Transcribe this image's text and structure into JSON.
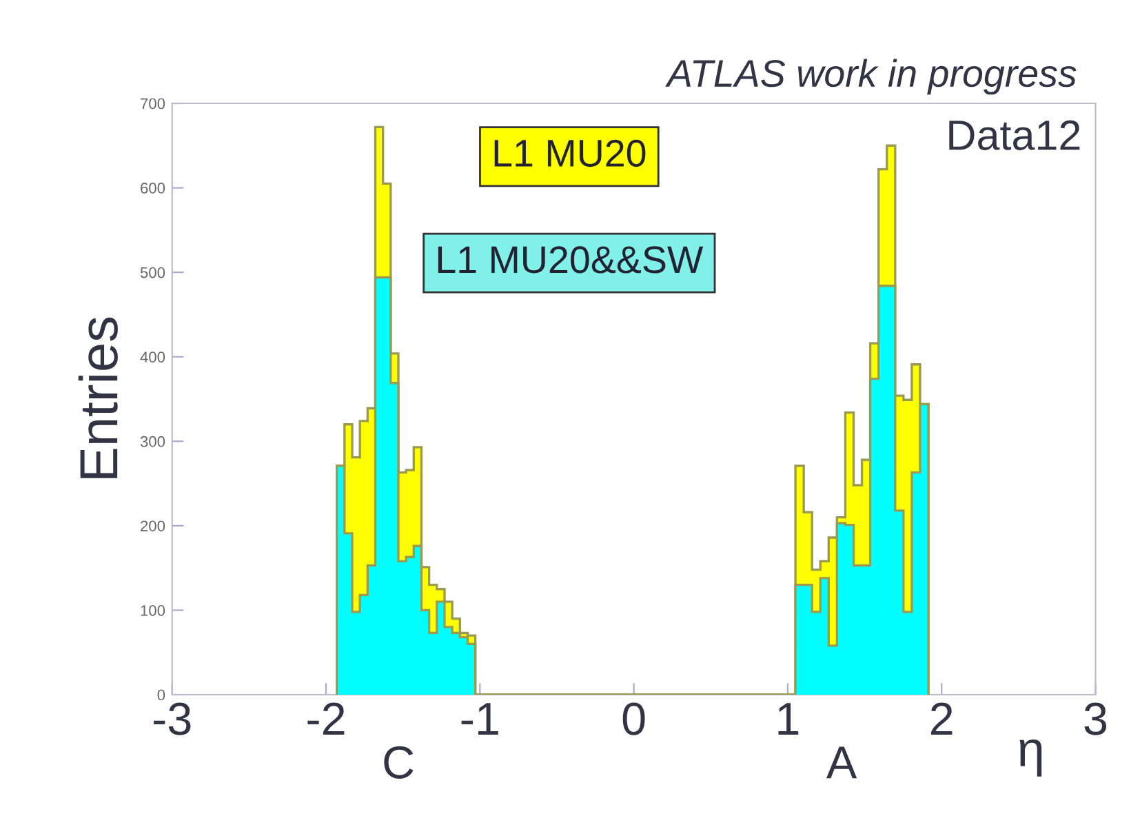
{
  "chart_data": {
    "type": "histogram",
    "ylabel": "Entries",
    "xlabel": "η",
    "bins": [
      -1.93,
      -1.88,
      -1.83,
      -1.78,
      -1.73,
      -1.68,
      -1.63,
      -1.58,
      -1.53,
      -1.48,
      -1.43,
      -1.38,
      -1.33,
      -1.28,
      -1.23,
      -1.18,
      -1.13,
      -1.08,
      -1.03,
      1.05,
      1.104,
      1.158,
      1.212,
      1.266,
      1.32,
      1.374,
      1.428,
      1.482,
      1.536,
      1.59,
      1.644,
      1.698,
      1.752,
      1.806,
      1.86,
      1.914
    ],
    "series": [
      {
        "name": "L1 MU20",
        "color": "#ffff00",
        "values": [
          271,
          320,
          281,
          324,
          339,
          672,
          605,
          404,
          263,
          266,
          293,
          151,
          130,
          125,
          110,
          90,
          73,
          70,
          0,
          271,
          216,
          148,
          158,
          186,
          210,
          334,
          248,
          278,
          416,
          622,
          650,
          354,
          349,
          391,
          344
        ]
      },
      {
        "name": "L1 MU20&&SW",
        "color": "#00ffff",
        "values": [
          271,
          191,
          98,
          118,
          153,
          494,
          494,
          369,
          158,
          163,
          176,
          100,
          73,
          110,
          80,
          73,
          68,
          60,
          0,
          130,
          130,
          98,
          138,
          58,
          203,
          201,
          153,
          153,
          374,
          484,
          484,
          218,
          98,
          263,
          344
        ]
      }
    ],
    "xlim": [
      -3,
      3
    ],
    "xticks": [
      -3,
      -2,
      -1,
      0,
      1,
      2,
      3
    ],
    "ylim": [
      0,
      700
    ],
    "yticks": [
      0,
      100,
      200,
      300,
      400,
      500,
      600,
      700
    ],
    "grid": false,
    "legend": "top",
    "annotations": [
      "ATLAS work in progress",
      "Data12",
      "C",
      "A"
    ]
  }
}
